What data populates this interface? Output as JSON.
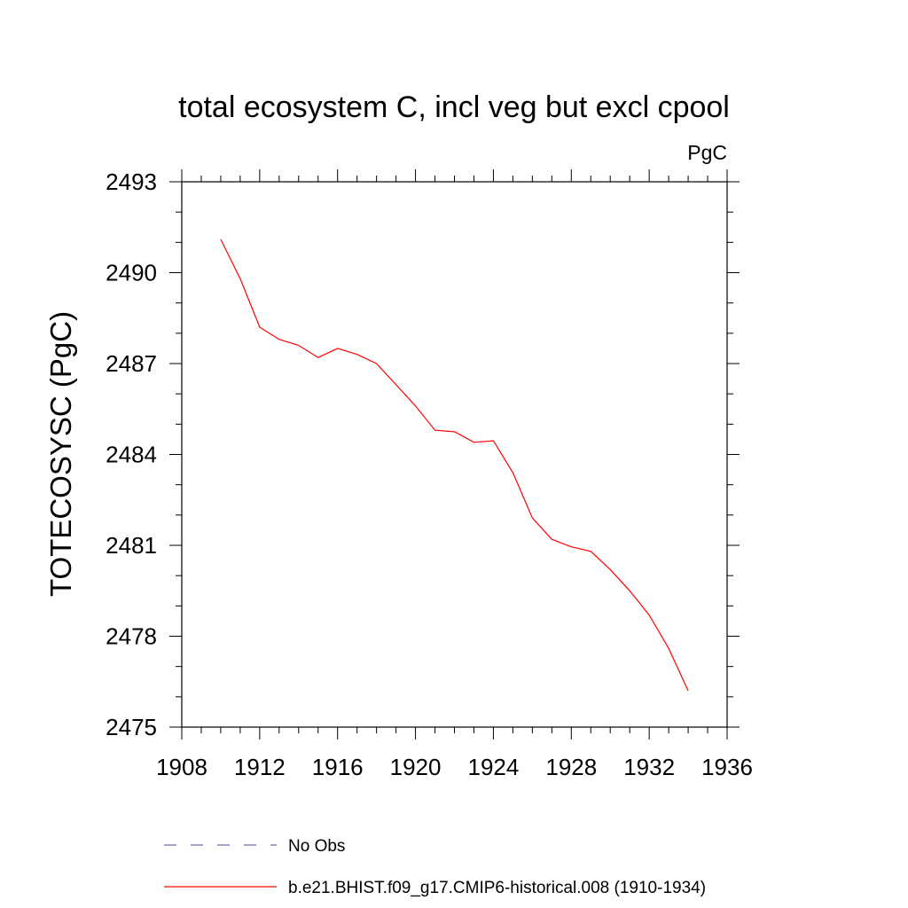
{
  "chart_data": {
    "type": "line",
    "title": "total ecosystem C, incl veg but excl cpool",
    "units": "PgC",
    "xlabel": "",
    "ylabel": "TOTECOSYSC  (PgC)",
    "xlim": [
      1908,
      1936
    ],
    "ylim": [
      2475,
      2493
    ],
    "xticks": [
      1908,
      1912,
      1916,
      1920,
      1924,
      1928,
      1932,
      1936
    ],
    "yticks": [
      2475,
      2478,
      2481,
      2484,
      2487,
      2490,
      2493
    ],
    "grid": false,
    "series": [
      {
        "name": "b.e21.BHIST.f09_g17.CMIP6-historical.008 (1910-1934)",
        "color": "#ff0000",
        "dash": "solid",
        "x": [
          1910,
          1911,
          1912,
          1913,
          1914,
          1915,
          1916,
          1917,
          1918,
          1919,
          1920,
          1921,
          1922,
          1923,
          1924,
          1925,
          1926,
          1927,
          1928,
          1929,
          1930,
          1931,
          1932,
          1933,
          1934
        ],
        "y": [
          2491.1,
          2489.8,
          2488.2,
          2487.8,
          2487.6,
          2487.2,
          2487.5,
          2487.3,
          2487.0,
          2486.3,
          2485.6,
          2484.8,
          2484.75,
          2484.4,
          2484.45,
          2483.4,
          2481.9,
          2481.2,
          2480.95,
          2480.8,
          2480.2,
          2479.5,
          2478.7,
          2477.6,
          2476.2
        ]
      }
    ],
    "legend": [
      {
        "label": "No Obs",
        "color": "#6e6ea8",
        "dash": "dashed"
      },
      {
        "label": "b.e21.BHIST.f09_g17.CMIP6-historical.008 (1910-1934)",
        "color": "#ff0000",
        "dash": "solid"
      }
    ]
  }
}
